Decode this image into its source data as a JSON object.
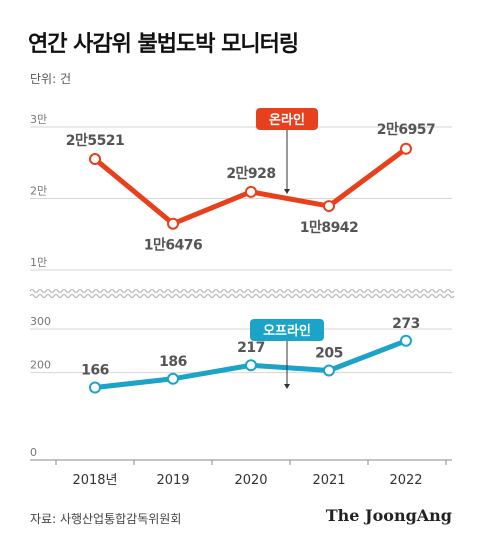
{
  "title": "연간 사감위 불법도박 모니터링",
  "unit": "단위: 건",
  "source": "자료: 사행산업통합감독위원회",
  "brand": "The JoongAng",
  "colors": {
    "online": "#e8401c",
    "offline": "#1ba3c8",
    "grid": "#d6d6d6",
    "highlight_online": "#e8401c",
    "highlight_offline": "#1ba3c8"
  },
  "chart_data": [
    {
      "type": "line",
      "categories": [
        "2018년",
        "2019",
        "2020",
        "2021",
        "2022"
      ],
      "series": [
        {
          "name": "온라인",
          "values": [
            25521,
            16476,
            20928,
            18942,
            26957
          ],
          "labels": [
            "2만5521",
            "1만6476",
            "2만928",
            "1만8942",
            "2만6957"
          ]
        }
      ],
      "yticks": [
        "1만",
        "2만",
        "3만"
      ],
      "ylim": [
        10000,
        30000
      ],
      "grid": true
    },
    {
      "type": "line",
      "categories": [
        "2018년",
        "2019",
        "2020",
        "2021",
        "2022"
      ],
      "series": [
        {
          "name": "오프라인",
          "values": [
            166,
            186,
            217,
            205,
            273
          ],
          "labels": [
            "166",
            "186",
            "217",
            "205",
            "273"
          ]
        }
      ],
      "yticks": [
        "0",
        "200",
        "300"
      ],
      "ylim": [
        0,
        300
      ],
      "grid": true
    }
  ]
}
